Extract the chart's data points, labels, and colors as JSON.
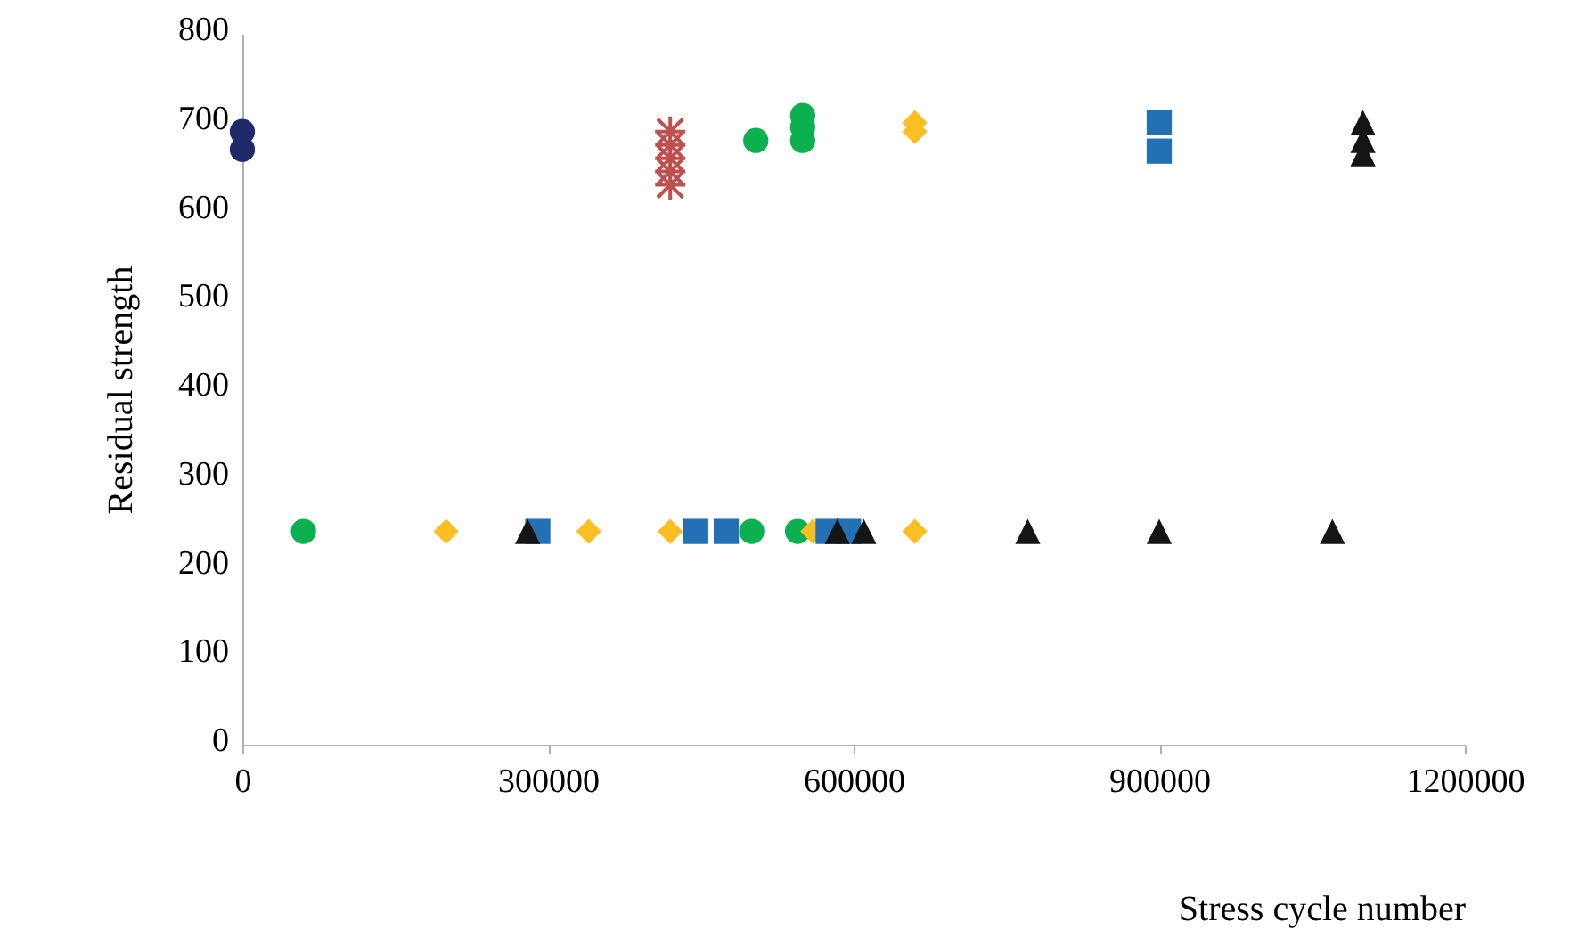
{
  "chart_data": {
    "type": "scatter",
    "xlabel": "Stress cycle number",
    "ylabel": "Residual strength",
    "xlim": [
      0,
      1200000
    ],
    "xticks": [
      0,
      300000,
      600000,
      900000,
      1200000
    ],
    "ylim": [
      0,
      800
    ],
    "yticks": [
      0,
      100,
      200,
      300,
      400,
      500,
      600,
      700,
      800
    ],
    "grid": false,
    "series": [
      {
        "color": "#1f2a6b",
        "marker": "circle",
        "x": [
          0,
          0
        ],
        "values": [
          670,
          690
        ]
      },
      {
        "color": "#c0504d",
        "marker": "cross",
        "x": [
          420000,
          420000,
          420000,
          420000,
          420000
        ],
        "values": [
          630,
          645,
          660,
          675,
          690
        ]
      },
      {
        "color": "#0bb04f",
        "marker": "circle",
        "x": [
          504000,
          550000,
          550000,
          550000,
          60000,
          500000,
          545000
        ],
        "values": [
          680,
          680,
          695,
          708,
          240,
          240,
          240
        ]
      },
      {
        "color": "#fbbf24",
        "marker": "diamond",
        "x": [
          660000,
          660000,
          200000,
          340000,
          420000,
          560000,
          660000
        ],
        "values": [
          690,
          700,
          240,
          240,
          240,
          240,
          240
        ]
      },
      {
        "color": "#2470b5",
        "marker": "square",
        "x": [
          900000,
          900000,
          290000,
          445000,
          475000,
          575000,
          595000
        ],
        "values": [
          668,
          700,
          240,
          240,
          240,
          240,
          240
        ]
      },
      {
        "color": "#151515",
        "marker": "triangle",
        "x": [
          1100000,
          1100000,
          1100000,
          280000,
          584000,
          610000,
          771000,
          900000,
          1070000
        ],
        "values": [
          665,
          680,
          700,
          240,
          240,
          240,
          240,
          240,
          240
        ]
      }
    ]
  }
}
